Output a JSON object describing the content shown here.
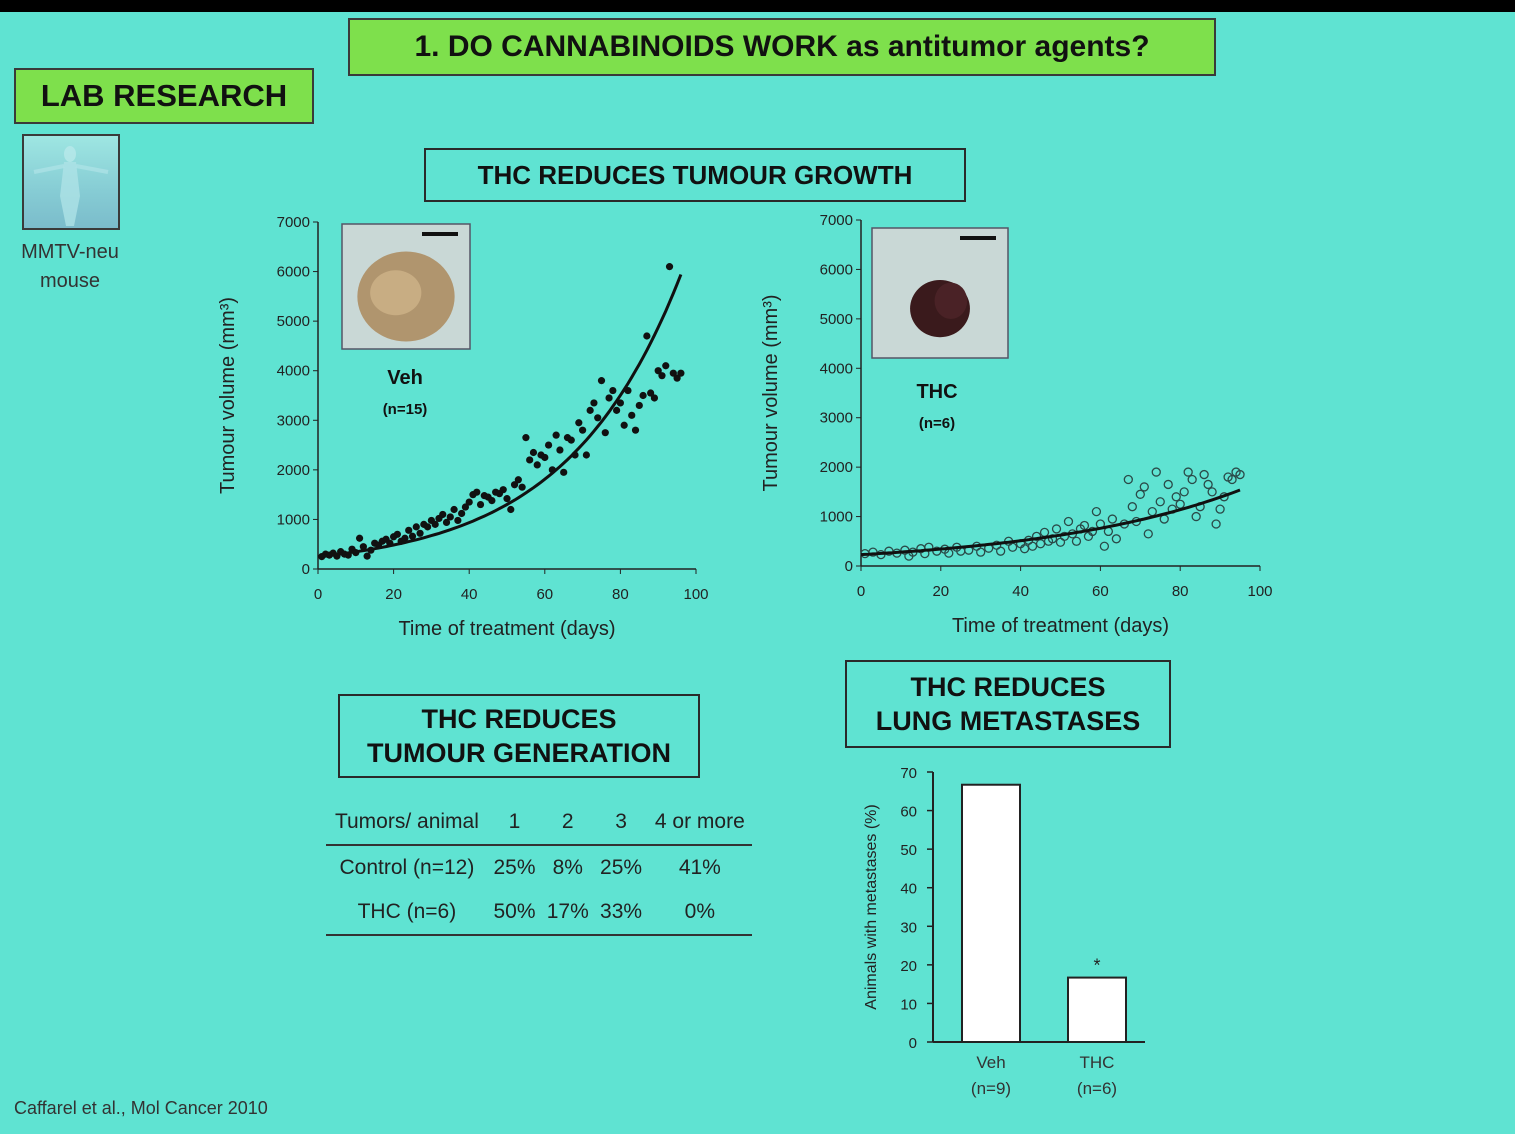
{
  "slide": {
    "title": "1. DO CANNABINOIDS WORK as antitumor agents?",
    "section_label": "LAB RESEARCH",
    "mouse_caption": [
      "MMTV-neu",
      "mouse"
    ],
    "citation": "Caffarel et al., Mol Cancer 2010"
  },
  "panels": {
    "growth_title": "THC REDUCES  TUMOUR GROWTH",
    "generation_title": [
      "THC REDUCES",
      "TUMOUR GENERATION"
    ],
    "metastases_title": [
      "THC REDUCES",
      "LUNG METASTASES"
    ]
  },
  "colors": {
    "slide_bg": "#5fe3d2",
    "title_box": "#7ee04c",
    "points": "#111111"
  },
  "chart_data": [
    {
      "type": "scatter",
      "group_label": "Veh",
      "group_n": "(n=15)",
      "xlabel": "Time  of treatment  (days)",
      "ylabel": "Tumour  volume  (mm³)",
      "xlim": [
        0,
        100
      ],
      "ylim": [
        0,
        7000
      ],
      "x_ticks": [
        "0",
        "20",
        "40",
        "60",
        "80",
        "100"
      ],
      "y_ticks": [
        "0",
        "1000",
        "2000",
        "3000",
        "4000",
        "5000",
        "6000",
        "7000"
      ],
      "marker": "filled",
      "fit_curve": {
        "type": "exponential",
        "a": 250,
        "b": 0.033,
        "x_range": [
          0,
          96
        ]
      },
      "points": [
        [
          1,
          250
        ],
        [
          2,
          300
        ],
        [
          3,
          280
        ],
        [
          4,
          320
        ],
        [
          5,
          260
        ],
        [
          6,
          350
        ],
        [
          7,
          300
        ],
        [
          8,
          280
        ],
        [
          9,
          400
        ],
        [
          10,
          330
        ],
        [
          11,
          620
        ],
        [
          12,
          450
        ],
        [
          13,
          260
        ],
        [
          14,
          380
        ],
        [
          15,
          520
        ],
        [
          16,
          480
        ],
        [
          17,
          560
        ],
        [
          18,
          600
        ],
        [
          19,
          520
        ],
        [
          20,
          650
        ],
        [
          21,
          700
        ],
        [
          22,
          560
        ],
        [
          23,
          620
        ],
        [
          24,
          780
        ],
        [
          25,
          660
        ],
        [
          26,
          850
        ],
        [
          27,
          720
        ],
        [
          28,
          900
        ],
        [
          29,
          850
        ],
        [
          30,
          980
        ],
        [
          31,
          900
        ],
        [
          32,
          1020
        ],
        [
          33,
          1100
        ],
        [
          34,
          940
        ],
        [
          35,
          1050
        ],
        [
          36,
          1200
        ],
        [
          37,
          980
        ],
        [
          38,
          1120
        ],
        [
          39,
          1250
        ],
        [
          40,
          1350
        ],
        [
          41,
          1500
        ],
        [
          42,
          1550
        ],
        [
          43,
          1300
        ],
        [
          44,
          1480
        ],
        [
          45,
          1450
        ],
        [
          46,
          1380
        ],
        [
          47,
          1550
        ],
        [
          48,
          1520
        ],
        [
          49,
          1600
        ],
        [
          50,
          1420
        ],
        [
          51,
          1200
        ],
        [
          52,
          1700
        ],
        [
          53,
          1800
        ],
        [
          54,
          1650
        ],
        [
          55,
          2650
        ],
        [
          56,
          2200
        ],
        [
          57,
          2350
        ],
        [
          58,
          2100
        ],
        [
          59,
          2300
        ],
        [
          60,
          2250
        ],
        [
          61,
          2500
        ],
        [
          62,
          2000
        ],
        [
          63,
          2700
        ],
        [
          64,
          2400
        ],
        [
          65,
          1950
        ],
        [
          66,
          2650
        ],
        [
          67,
          2600
        ],
        [
          68,
          2300
        ],
        [
          69,
          2950
        ],
        [
          70,
          2800
        ],
        [
          71,
          2300
        ],
        [
          72,
          3200
        ],
        [
          73,
          3350
        ],
        [
          74,
          3050
        ],
        [
          75,
          3800
        ],
        [
          76,
          2750
        ],
        [
          77,
          3450
        ],
        [
          78,
          3600
        ],
        [
          79,
          3200
        ],
        [
          80,
          3350
        ],
        [
          81,
          2900
        ],
        [
          82,
          3600
        ],
        [
          83,
          3100
        ],
        [
          84,
          2800
        ],
        [
          85,
          3300
        ],
        [
          86,
          3500
        ],
        [
          87,
          4700
        ],
        [
          88,
          3550
        ],
        [
          89,
          3450
        ],
        [
          90,
          4000
        ],
        [
          91,
          3900
        ],
        [
          92,
          4100
        ],
        [
          93,
          6100
        ],
        [
          94,
          3950
        ],
        [
          95,
          3850
        ],
        [
          96,
          3950
        ]
      ]
    },
    {
      "type": "scatter",
      "group_label": "THC",
      "group_n": "(n=6)",
      "xlabel": "Time  of treatment  (days)",
      "ylabel": "Tumour  volume  (mm³)",
      "xlim": [
        0,
        100
      ],
      "ylim": [
        0,
        7000
      ],
      "x_ticks": [
        "0",
        "20",
        "40",
        "60",
        "80",
        "100"
      ],
      "y_ticks": [
        "0",
        "1000",
        "2000",
        "3000",
        "4000",
        "5000",
        "6000",
        "7000"
      ],
      "marker": "open",
      "fit_curve": {
        "type": "exponential",
        "a": 230,
        "b": 0.02,
        "x_range": [
          0,
          95
        ]
      },
      "points": [
        [
          1,
          250
        ],
        [
          3,
          280
        ],
        [
          5,
          230
        ],
        [
          7,
          300
        ],
        [
          9,
          260
        ],
        [
          11,
          320
        ],
        [
          12,
          200
        ],
        [
          13,
          280
        ],
        [
          15,
          350
        ],
        [
          16,
          250
        ],
        [
          17,
          380
        ],
        [
          19,
          300
        ],
        [
          21,
          340
        ],
        [
          22,
          260
        ],
        [
          24,
          380
        ],
        [
          25,
          300
        ],
        [
          27,
          320
        ],
        [
          29,
          400
        ],
        [
          30,
          280
        ],
        [
          32,
          360
        ],
        [
          34,
          420
        ],
        [
          35,
          300
        ],
        [
          37,
          500
        ],
        [
          38,
          380
        ],
        [
          40,
          450
        ],
        [
          41,
          350
        ],
        [
          42,
          520
        ],
        [
          43,
          400
        ],
        [
          44,
          600
        ],
        [
          45,
          450
        ],
        [
          46,
          680
        ],
        [
          47,
          500
        ],
        [
          48,
          550
        ],
        [
          49,
          750
        ],
        [
          50,
          480
        ],
        [
          51,
          600
        ],
        [
          52,
          900
        ],
        [
          53,
          650
        ],
        [
          54,
          500
        ],
        [
          55,
          750
        ],
        [
          56,
          820
        ],
        [
          57,
          600
        ],
        [
          58,
          700
        ],
        [
          59,
          1100
        ],
        [
          60,
          850
        ],
        [
          61,
          400
        ],
        [
          62,
          700
        ],
        [
          63,
          950
        ],
        [
          64,
          550
        ],
        [
          66,
          850
        ],
        [
          67,
          1750
        ],
        [
          68,
          1200
        ],
        [
          69,
          900
        ],
        [
          70,
          1450
        ],
        [
          71,
          1600
        ],
        [
          72,
          650
        ],
        [
          73,
          1100
        ],
        [
          74,
          1900
        ],
        [
          75,
          1300
        ],
        [
          76,
          950
        ],
        [
          77,
          1650
        ],
        [
          78,
          1150
        ],
        [
          79,
          1400
        ],
        [
          80,
          1250
        ],
        [
          81,
          1500
        ],
        [
          82,
          1900
        ],
        [
          83,
          1750
        ],
        [
          84,
          1000
        ],
        [
          85,
          1200
        ],
        [
          86,
          1850
        ],
        [
          87,
          1650
        ],
        [
          88,
          1500
        ],
        [
          89,
          850
        ],
        [
          90,
          1150
        ],
        [
          91,
          1400
        ],
        [
          92,
          1800
        ],
        [
          93,
          1750
        ],
        [
          94,
          1900
        ],
        [
          95,
          1850
        ]
      ]
    },
    {
      "type": "table",
      "header": [
        "Tumors/ animal",
        "1",
        "2",
        "3",
        "4 or more"
      ],
      "rows": [
        {
          "group": "Control (n=12)",
          "values": [
            "25%",
            "8%",
            "25%",
            "41%"
          ]
        },
        {
          "group": "THC (n=6)",
          "values": [
            "50%",
            "17%",
            "33%",
            "0%"
          ]
        }
      ]
    },
    {
      "type": "bar",
      "categories": [
        "Veh",
        "THC"
      ],
      "category_n": [
        "(n=9)",
        "(n=6)"
      ],
      "values": [
        66.7,
        16.7
      ],
      "ylabel": "Animals with metastases (%)",
      "ylim": [
        0,
        70
      ],
      "y_ticks": [
        "0",
        "10",
        "20",
        "30",
        "40",
        "50",
        "60",
        "70"
      ],
      "annotations": [
        {
          "category": "THC",
          "text": "*"
        }
      ]
    }
  ]
}
